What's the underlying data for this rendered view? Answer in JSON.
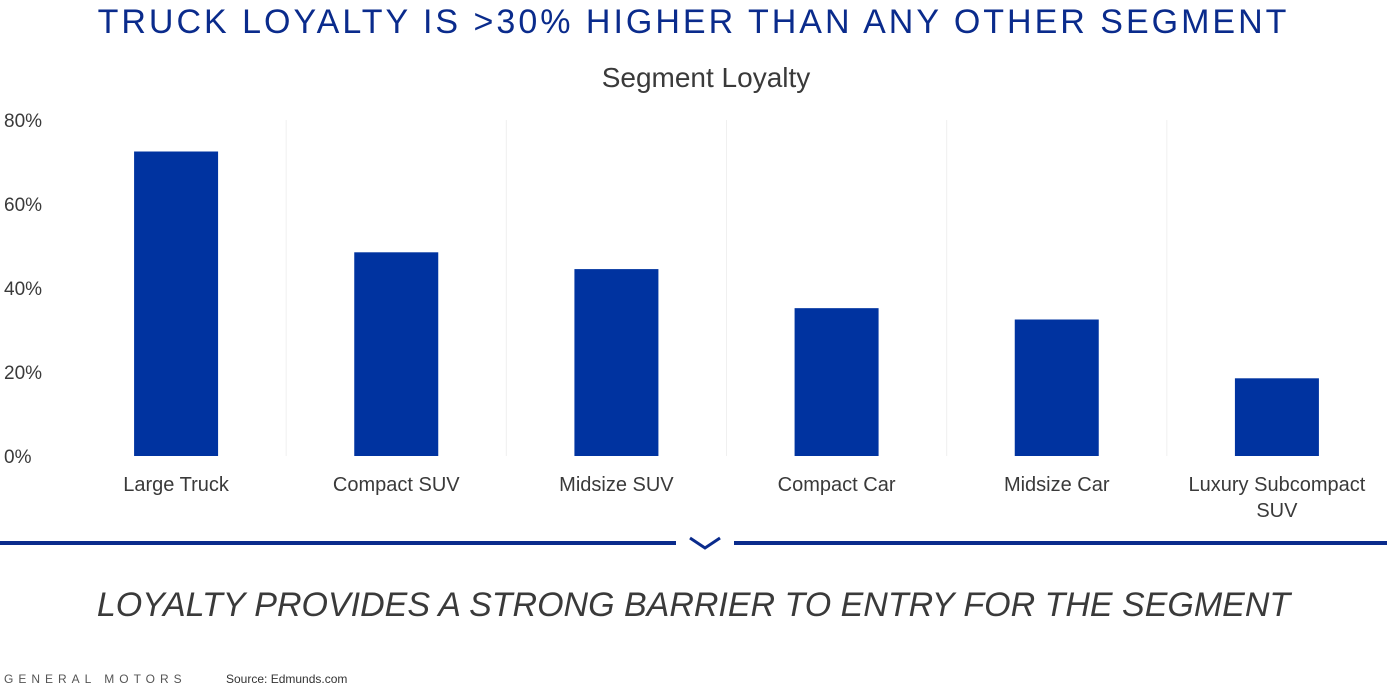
{
  "headline": "TRUCK LOYALTY IS >30% HIGHER THAN ANY OTHER SEGMENT",
  "takeaway": "LOYALTY PROVIDES A STRONG BARRIER TO ENTRY FOR THE SEGMENT",
  "footer": {
    "brand": "GENERAL MOTORS",
    "source": "Source: Edmunds.com"
  },
  "colors": {
    "accent": "#0a2b8c",
    "bar": "#0033a0",
    "text": "#3a3a3a"
  },
  "chart_data": {
    "type": "bar",
    "title": "Segment Loyalty",
    "xlabel": "",
    "ylabel": "",
    "categories": [
      "Large Truck",
      "Compact SUV",
      "Midsize SUV",
      "Compact Car",
      "Midsize Car",
      "Luxury Subcompact SUV"
    ],
    "values": [
      72.5,
      48.5,
      44.5,
      35.2,
      32.5,
      18.5
    ],
    "ylim": [
      0,
      80
    ],
    "yticks": [
      "0%",
      "20%",
      "40%",
      "60%",
      "80%"
    ],
    "ytick_values": [
      0,
      20,
      40,
      60,
      80
    ],
    "grid": true,
    "legend": false
  }
}
